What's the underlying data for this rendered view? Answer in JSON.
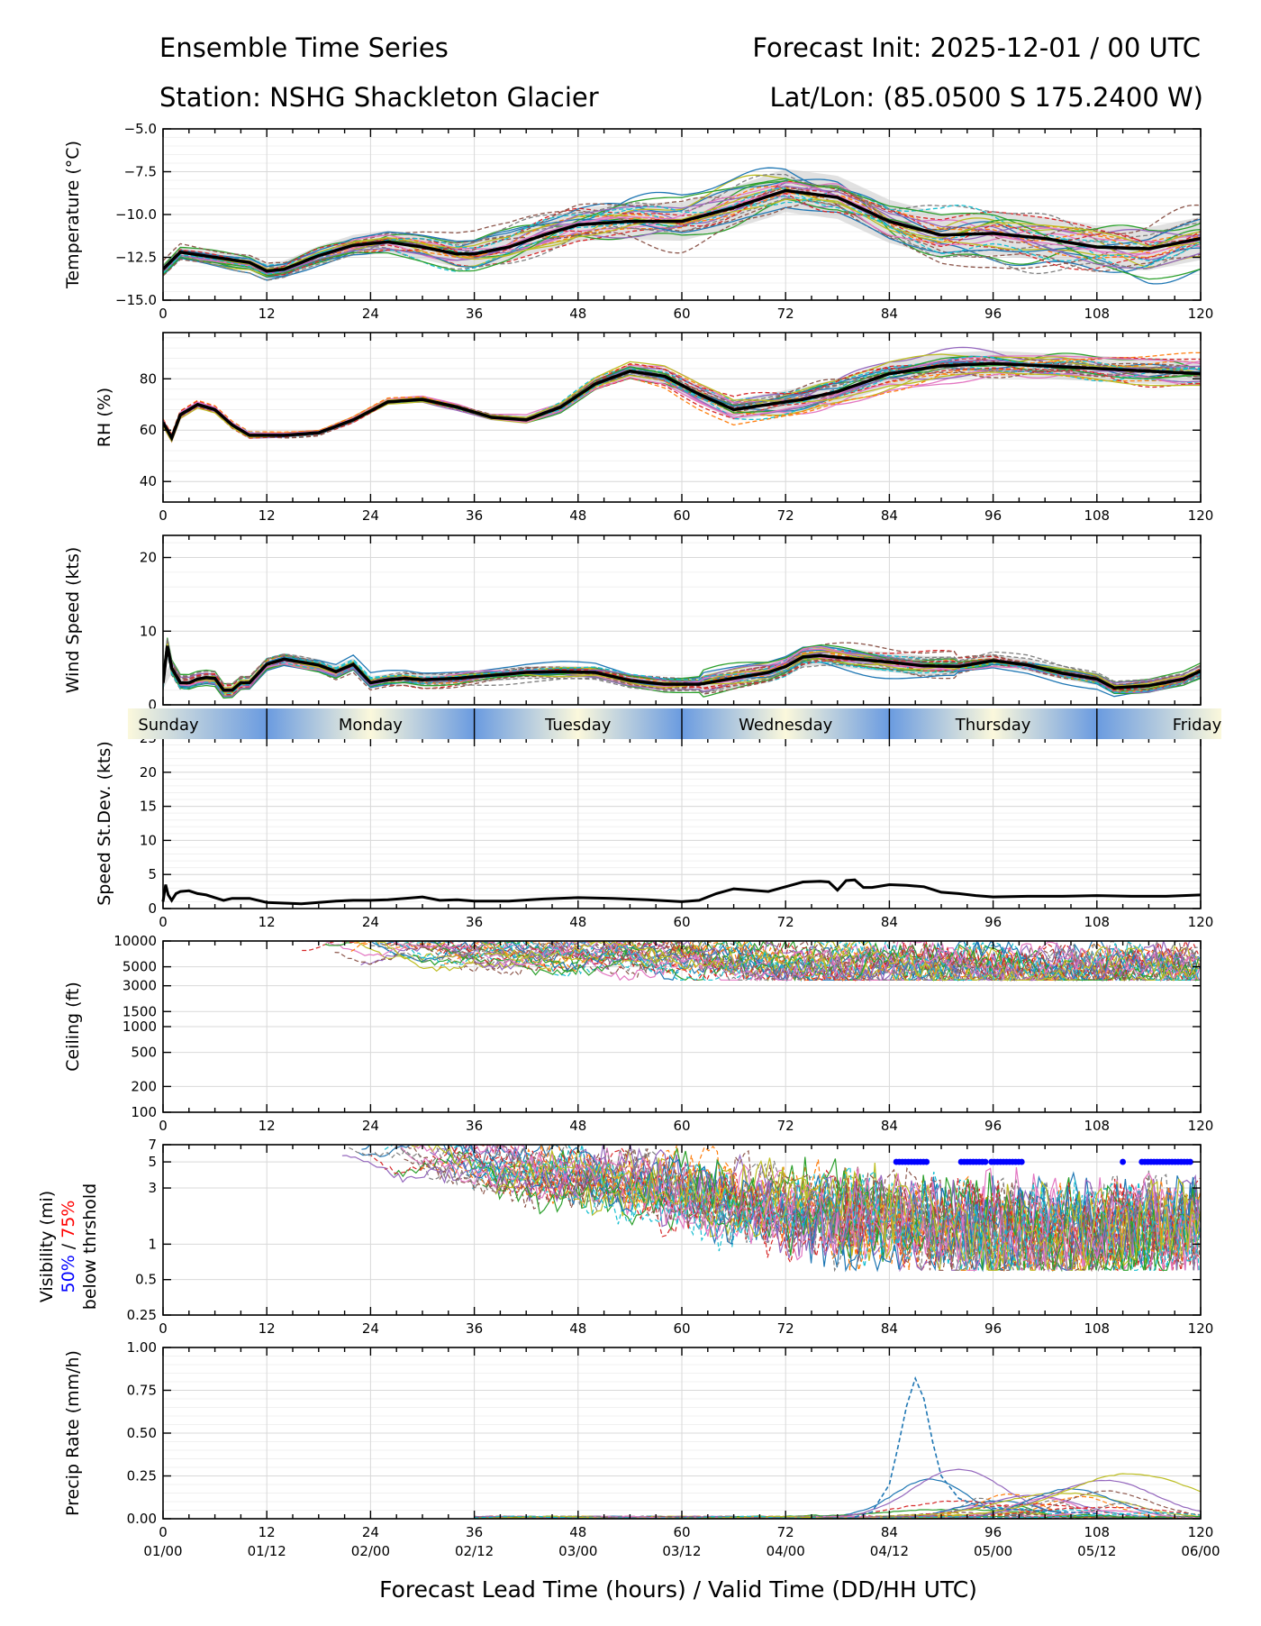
{
  "header": {
    "title_left": "Ensemble Time Series",
    "title_right": "Forecast Init: 2025-12-01 / 00 UTC",
    "station": "Station: NSHG Shackleton Glacier",
    "latlon": "Lat/Lon: (85.0500 S 175.2400 W)"
  },
  "x_axis": {
    "label": "Forecast Lead Time (hours) / Valid Time (DD/HH UTC)",
    "lead_hours": [
      "0",
      "12",
      "24",
      "36",
      "48",
      "60",
      "72",
      "84",
      "96",
      "108",
      "120"
    ],
    "valid_times": [
      "01/00",
      "01/12",
      "02/00",
      "02/12",
      "03/00",
      "03/12",
      "04/00",
      "04/12",
      "05/00",
      "05/12",
      "06/00"
    ]
  },
  "day_band": {
    "days": [
      "Sunday",
      "Monday",
      "Tuesday",
      "Wednesday",
      "Thursday",
      "Friday"
    ],
    "colors": {
      "night": "#6a9be0",
      "day": "#fbf8dc"
    }
  },
  "visibility_label": {
    "line1": "Visibility (mi)",
    "pct50": "50%",
    "slash": " / ",
    "pct75": "75%",
    "line3": "below thrshold",
    "color50": "#0000ff",
    "color75": "#ff0000"
  },
  "chart_data": [
    {
      "type": "line",
      "id": "temperature",
      "ylabel": "Temperature (°C)",
      "ylim": [
        -15,
        -5
      ],
      "yticks": [
        -15,
        -12.5,
        -10,
        -7.5,
        -5
      ],
      "ytick_labels": [
        "−15.0",
        "−12.5",
        "−10.0",
        "−7.5",
        "−5.0"
      ],
      "xlim": [
        0,
        120
      ],
      "ensemble_mean": {
        "x": [
          0,
          2,
          6,
          10,
          12,
          14,
          18,
          22,
          26,
          30,
          34,
          36,
          40,
          44,
          48,
          54,
          60,
          66,
          72,
          78,
          84,
          90,
          96,
          102,
          108,
          114,
          120
        ],
        "y": [
          -13.2,
          -12.2,
          -12.5,
          -12.8,
          -13.3,
          -13.2,
          -12.4,
          -11.8,
          -11.6,
          -11.9,
          -12.3,
          -12.3,
          -11.9,
          -11.2,
          -10.6,
          -10.4,
          -10.4,
          -9.6,
          -8.6,
          -9.0,
          -10.4,
          -11.2,
          -11.1,
          -11.4,
          -11.9,
          -12.0,
          -11.4
        ]
      },
      "members": {
        "count": 30,
        "spread_max": 2.8
      }
    },
    {
      "type": "line",
      "id": "rh",
      "ylabel": "RH (%)",
      "ylim": [
        32,
        98
      ],
      "yticks": [
        40,
        60,
        80
      ],
      "ytick_labels": [
        "40",
        "60",
        "80"
      ],
      "xlim": [
        0,
        120
      ],
      "ensemble_mean": {
        "x": [
          0,
          1,
          2,
          4,
          6,
          8,
          10,
          14,
          18,
          22,
          26,
          30,
          34,
          38,
          42,
          46,
          50,
          54,
          58,
          62,
          66,
          70,
          74,
          78,
          84,
          90,
          96,
          102,
          108,
          114,
          120
        ],
        "y": [
          63,
          57,
          66,
          70,
          68,
          62,
          58,
          58,
          59,
          64,
          71,
          72,
          69,
          65,
          64,
          69,
          78,
          83,
          81,
          74,
          68,
          70,
          72,
          75,
          82,
          85,
          86,
          85,
          84,
          83,
          82
        ]
      },
      "members": {
        "count": 30,
        "spread_max": 11
      }
    },
    {
      "type": "line",
      "id": "wind_speed",
      "ylabel": "Wind Speed (kts)",
      "ylim": [
        0,
        23
      ],
      "yticks": [
        0,
        10,
        20
      ],
      "ytick_labels": [
        "0",
        "10",
        "20"
      ],
      "xlim": [
        0,
        120
      ],
      "ensemble_mean": {
        "x": [
          0,
          0.5,
          1,
          2,
          3,
          4,
          5,
          6,
          7,
          8,
          9,
          10,
          12,
          14,
          18,
          20,
          22,
          24,
          26,
          28,
          30,
          34,
          38,
          42,
          46,
          50,
          54,
          58,
          62,
          64,
          66,
          70,
          72,
          74,
          76,
          80,
          84,
          88,
          92,
          96,
          100,
          104,
          108,
          110,
          114,
          118,
          120
        ],
        "y": [
          3,
          8,
          5,
          3,
          3,
          3.5,
          3.7,
          3.6,
          2,
          2,
          3,
          3,
          5.5,
          6.2,
          5.4,
          4.5,
          5.5,
          3,
          3.4,
          3.6,
          3.4,
          3.6,
          4,
          4.4,
          4.5,
          4.4,
          3.3,
          2.8,
          2.8,
          3.2,
          3.6,
          4.4,
          5.2,
          6.5,
          6.7,
          6.2,
          5.8,
          5.3,
          5.2,
          6,
          5.4,
          4.3,
          3.5,
          2.3,
          2.6,
          3.5,
          4.6
        ]
      },
      "members": {
        "count": 30,
        "spread_max": 3
      }
    },
    {
      "type": "line",
      "id": "speed_stdev",
      "ylabel": "Speed St.Dev. (kts)",
      "ylim": [
        0,
        25
      ],
      "yticks": [
        0,
        5,
        10,
        15,
        20,
        25
      ],
      "ytick_labels": [
        "0",
        "5",
        "10",
        "15",
        "20",
        "25"
      ],
      "xlim": [
        0,
        120
      ],
      "series": {
        "x": [
          0,
          0.3,
          0.6,
          1,
          1.5,
          2,
          3,
          4,
          5,
          6,
          7,
          8,
          10,
          12,
          14,
          16,
          18,
          20,
          22,
          24,
          26,
          28,
          30,
          32,
          34,
          36,
          40,
          44,
          48,
          52,
          56,
          60,
          62,
          64,
          66,
          68,
          70,
          72,
          74,
          76,
          77,
          78,
          79,
          80,
          81,
          82,
          84,
          86,
          88,
          90,
          92,
          94,
          96,
          100,
          104,
          108,
          112,
          116,
          120
        ],
        "y": [
          1,
          3.5,
          2,
          1.2,
          2.2,
          2.5,
          2.6,
          2.2,
          2,
          1.6,
          1.2,
          1.5,
          1.5,
          0.9,
          0.8,
          0.7,
          0.9,
          1.1,
          1.2,
          1.2,
          1.3,
          1.5,
          1.7,
          1.2,
          1.3,
          1.1,
          1.1,
          1.4,
          1.6,
          1.5,
          1.3,
          1.0,
          1.2,
          2.2,
          2.9,
          2.7,
          2.5,
          3.2,
          3.9,
          4.0,
          3.9,
          2.7,
          4.1,
          4.2,
          3.1,
          3.1,
          3.5,
          3.4,
          3.2,
          2.4,
          2.2,
          1.9,
          1.7,
          1.8,
          1.8,
          1.9,
          1.8,
          1.8,
          2.0
        ]
      }
    },
    {
      "type": "line",
      "id": "ceiling",
      "ylabel": "Ceiling (ft)",
      "yscale": "log",
      "ylim": [
        100,
        10000
      ],
      "yticks": [
        100,
        200,
        500,
        1000,
        1500,
        3000,
        5000,
        10000
      ],
      "ytick_labels": [
        "100",
        "200",
        "500",
        "1000",
        "1500",
        "3000",
        "5000",
        "10000"
      ],
      "xlim": [
        0,
        120
      ],
      "members": {
        "count": 30,
        "band": [
          3500,
          10000
        ]
      }
    },
    {
      "type": "line",
      "id": "visibility",
      "yscale": "log",
      "ylim": [
        0.25,
        7
      ],
      "yticks": [
        0.25,
        0.5,
        1,
        3,
        5,
        7
      ],
      "ytick_labels": [
        "0.25",
        "0.5",
        "1",
        "3",
        "5",
        "7"
      ],
      "xlim": [
        0,
        120
      ],
      "below_threshold_50pct": {
        "y": 5,
        "x_ranges": [
          [
            84.8,
            88.6
          ],
          [
            92.3,
            95.3
          ],
          [
            95.8,
            99.6
          ],
          [
            111,
            111.3
          ],
          [
            113.2,
            118.8
          ]
        ]
      },
      "members": {
        "count": 30,
        "band": [
          0.6,
          7
        ]
      }
    },
    {
      "type": "line",
      "id": "precip",
      "ylabel": "Precip Rate (mm/h)",
      "ylim": [
        0,
        1
      ],
      "yticks": [
        0,
        0.25,
        0.5,
        0.75,
        1.0
      ],
      "ytick_labels": [
        "0.00",
        "0.25",
        "0.50",
        "0.75",
        "1.00"
      ],
      "xlim": [
        0,
        120
      ],
      "peak_member": {
        "x": [
          80,
          82,
          84,
          85,
          86,
          87,
          88,
          89,
          90,
          92,
          94,
          96,
          100,
          104,
          108
        ],
        "y": [
          0.01,
          0.04,
          0.2,
          0.42,
          0.66,
          0.82,
          0.7,
          0.45,
          0.25,
          0.12,
          0.08,
          0.06,
          0.05,
          0.04,
          0.03
        ]
      },
      "members": {
        "count": 30,
        "max": 0.3
      }
    }
  ]
}
